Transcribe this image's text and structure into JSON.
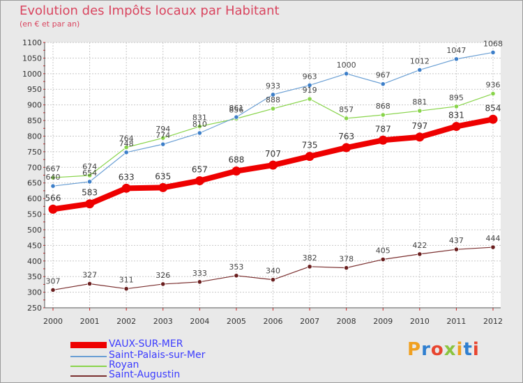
{
  "title": "Evolution des Impôts locaux par Habitant",
  "subtitle": "(en € et par an)",
  "logo_text": "Proxiti",
  "chart_data": {
    "type": "line",
    "title": "Evolution des Impôts locaux par Habitant",
    "subtitle": "(en € et par an)",
    "x": [
      "2000",
      "2001",
      "2002",
      "2003",
      "2004",
      "2005",
      "2006",
      "2007",
      "2008",
      "2009",
      "2010",
      "2011",
      "2012"
    ],
    "ylim": [
      250,
      1100
    ],
    "yticks": [
      250,
      300,
      350,
      400,
      450,
      500,
      550,
      600,
      650,
      700,
      750,
      800,
      850,
      900,
      950,
      1000,
      1050,
      1100
    ],
    "grid": true,
    "legend_position": "bottom-left",
    "series": [
      {
        "name": "VAUX-SUR-MER",
        "color": "#ee0000",
        "values": [
          566,
          583,
          633,
          635,
          657,
          688,
          707,
          735,
          763,
          787,
          797,
          831,
          854
        ]
      },
      {
        "name": "Saint-Palais-sur-Mer",
        "color": "#6a9fd4",
        "values": [
          640,
          654,
          748,
          774,
          810,
          861,
          933,
          963,
          1000,
          967,
          1012,
          1047,
          1068
        ]
      },
      {
        "name": "Royan",
        "color": "#88d44a",
        "values": [
          667,
          674,
          764,
          794,
          831,
          856,
          888,
          919,
          857,
          868,
          881,
          895,
          936
        ]
      },
      {
        "name": "Saint-Augustin",
        "color": "#7a2e2e",
        "values": [
          307,
          327,
          311,
          326,
          333,
          353,
          340,
          382,
          378,
          405,
          422,
          437,
          444
        ]
      }
    ]
  }
}
